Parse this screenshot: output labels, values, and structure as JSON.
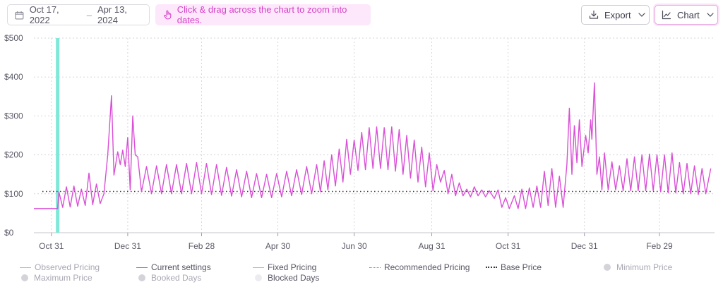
{
  "toolbar": {
    "date_start": "Oct 17, 2022",
    "date_sep": "–",
    "date_end": "Apr 13, 2024",
    "hint": "Click & drag across the chart to zoom into dates.",
    "export_label": "Export",
    "chart_label": "Chart"
  },
  "legend": {
    "observed": "Observed Pricing",
    "current": "Current settings",
    "fixed": "Fixed Pricing",
    "recommended": "Recommended Pricing",
    "base": "Base Price",
    "minimum": "Minimum Price",
    "maximum": "Maximum Price",
    "booked": "Booked Days",
    "blocked": "Blocked Days"
  },
  "colors": {
    "current": "#d94fd6",
    "base": "#3a3a46",
    "highlight": "#7fe8d8",
    "fixed": "#f0b53c",
    "grid": "#d6d6dd"
  },
  "chart_data": {
    "type": "line",
    "x_range": [
      "2022-10-17",
      "2024-04-13"
    ],
    "x_ticks": [
      {
        "date": "2022-10-31",
        "label": "Oct 31"
      },
      {
        "date": "2022-12-31",
        "label": "Dec 31"
      },
      {
        "date": "2023-02-28",
        "label": "Feb 28"
      },
      {
        "date": "2023-04-30",
        "label": "Apr 30"
      },
      {
        "date": "2023-06-30",
        "label": "Jun 30"
      },
      {
        "date": "2023-08-31",
        "label": "Aug 31"
      },
      {
        "date": "2023-10-31",
        "label": "Oct 31"
      },
      {
        "date": "2023-12-31",
        "label": "Dec 31"
      },
      {
        "date": "2024-02-29",
        "label": "Feb 29"
      }
    ],
    "y_ticks": [
      {
        "value": 0,
        "label": "$0"
      },
      {
        "value": 100,
        "label": "$100"
      },
      {
        "value": 200,
        "label": "$200"
      },
      {
        "value": 300,
        "label": "$300"
      },
      {
        "value": 400,
        "label": "$400"
      },
      {
        "value": 500,
        "label": "$500"
      }
    ],
    "ylim": [
      0,
      500
    ],
    "grid": true,
    "highlight_date": "2022-11-05",
    "base_price": 106,
    "series": [
      {
        "name": "Current settings",
        "points": [
          [
            "2022-10-17",
            62
          ],
          [
            "2022-10-31",
            62
          ],
          [
            "2022-11-05",
            62
          ],
          [
            "2022-11-06",
            105
          ],
          [
            "2022-11-09",
            65
          ],
          [
            "2022-11-12",
            118
          ],
          [
            "2022-11-15",
            66
          ],
          [
            "2022-11-18",
            120
          ],
          [
            "2022-11-21",
            68
          ],
          [
            "2022-11-24",
            112
          ],
          [
            "2022-11-27",
            70
          ],
          [
            "2022-11-30",
            153
          ],
          [
            "2022-12-03",
            72
          ],
          [
            "2022-12-06",
            125
          ],
          [
            "2022-12-09",
            75
          ],
          [
            "2022-12-12",
            100
          ],
          [
            "2022-12-15",
            200
          ],
          [
            "2022-12-18",
            352
          ],
          [
            "2022-12-20",
            148
          ],
          [
            "2022-12-23",
            208
          ],
          [
            "2022-12-25",
            175
          ],
          [
            "2022-12-27",
            212
          ],
          [
            "2022-12-29",
            170
          ],
          [
            "2022-12-31",
            245
          ],
          [
            "2023-01-02",
            110
          ],
          [
            "2023-01-04",
            300
          ],
          [
            "2023-01-06",
            200
          ],
          [
            "2023-01-08",
            195
          ],
          [
            "2023-01-11",
            105
          ],
          [
            "2023-01-15",
            170
          ],
          [
            "2023-01-19",
            100
          ],
          [
            "2023-01-23",
            172
          ],
          [
            "2023-01-27",
            100
          ],
          [
            "2023-01-31",
            175
          ],
          [
            "2023-02-04",
            100
          ],
          [
            "2023-02-08",
            175
          ],
          [
            "2023-02-12",
            100
          ],
          [
            "2023-02-16",
            178
          ],
          [
            "2023-02-20",
            100
          ],
          [
            "2023-02-24",
            180
          ],
          [
            "2023-02-28",
            100
          ],
          [
            "2023-03-04",
            178
          ],
          [
            "2023-03-08",
            98
          ],
          [
            "2023-03-12",
            175
          ],
          [
            "2023-03-16",
            96
          ],
          [
            "2023-03-20",
            168
          ],
          [
            "2023-03-24",
            94
          ],
          [
            "2023-03-28",
            162
          ],
          [
            "2023-04-01",
            92
          ],
          [
            "2023-04-05",
            158
          ],
          [
            "2023-04-09",
            90
          ],
          [
            "2023-04-13",
            152
          ],
          [
            "2023-04-17",
            90
          ],
          [
            "2023-04-21",
            150
          ],
          [
            "2023-04-25",
            90
          ],
          [
            "2023-04-29",
            152
          ],
          [
            "2023-05-03",
            92
          ],
          [
            "2023-05-07",
            158
          ],
          [
            "2023-05-11",
            95
          ],
          [
            "2023-05-15",
            162
          ],
          [
            "2023-05-19",
            98
          ],
          [
            "2023-05-23",
            170
          ],
          [
            "2023-05-27",
            100
          ],
          [
            "2023-05-31",
            175
          ],
          [
            "2023-06-03",
            105
          ],
          [
            "2023-06-06",
            185
          ],
          [
            "2023-06-09",
            110
          ],
          [
            "2023-06-12",
            200
          ],
          [
            "2023-06-15",
            120
          ],
          [
            "2023-06-18",
            215
          ],
          [
            "2023-06-21",
            130
          ],
          [
            "2023-06-24",
            240
          ],
          [
            "2023-06-27",
            150
          ],
          [
            "2023-06-30",
            238
          ],
          [
            "2023-07-03",
            160
          ],
          [
            "2023-07-06",
            258
          ],
          [
            "2023-07-09",
            162
          ],
          [
            "2023-07-12",
            270
          ],
          [
            "2023-07-15",
            165
          ],
          [
            "2023-07-18",
            272
          ],
          [
            "2023-07-21",
            165
          ],
          [
            "2023-07-24",
            270
          ],
          [
            "2023-07-27",
            162
          ],
          [
            "2023-07-30",
            272
          ],
          [
            "2023-08-02",
            158
          ],
          [
            "2023-08-05",
            265
          ],
          [
            "2023-08-08",
            150
          ],
          [
            "2023-08-11",
            250
          ],
          [
            "2023-08-14",
            140
          ],
          [
            "2023-08-17",
            238
          ],
          [
            "2023-08-20",
            130
          ],
          [
            "2023-08-23",
            220
          ],
          [
            "2023-08-26",
            118
          ],
          [
            "2023-08-29",
            205
          ],
          [
            "2023-09-01",
            108
          ],
          [
            "2023-09-04",
            175
          ],
          [
            "2023-09-07",
            130
          ],
          [
            "2023-09-10",
            160
          ],
          [
            "2023-09-13",
            100
          ],
          [
            "2023-09-16",
            150
          ],
          [
            "2023-09-19",
            95
          ],
          [
            "2023-09-22",
            128
          ],
          [
            "2023-09-25",
            95
          ],
          [
            "2023-09-28",
            112
          ],
          [
            "2023-10-01",
            92
          ],
          [
            "2023-10-04",
            118
          ],
          [
            "2023-10-07",
            95
          ],
          [
            "2023-10-10",
            110
          ],
          [
            "2023-10-13",
            92
          ],
          [
            "2023-10-16",
            108
          ],
          [
            "2023-10-20",
            88
          ],
          [
            "2023-10-23",
            110
          ],
          [
            "2023-10-26",
            65
          ],
          [
            "2023-10-29",
            90
          ],
          [
            "2023-11-01",
            62
          ],
          [
            "2023-11-05",
            95
          ],
          [
            "2023-11-08",
            62
          ],
          [
            "2023-11-11",
            112
          ],
          [
            "2023-11-14",
            62
          ],
          [
            "2023-11-17",
            115
          ],
          [
            "2023-11-20",
            65
          ],
          [
            "2023-11-23",
            120
          ],
          [
            "2023-11-26",
            65
          ],
          [
            "2023-11-29",
            158
          ],
          [
            "2023-12-02",
            70
          ],
          [
            "2023-12-05",
            165
          ],
          [
            "2023-12-08",
            65
          ],
          [
            "2023-12-11",
            145
          ],
          [
            "2023-12-14",
            65
          ],
          [
            "2023-12-17",
            175
          ],
          [
            "2023-12-19",
            320
          ],
          [
            "2023-12-21",
            150
          ],
          [
            "2023-12-23",
            275
          ],
          [
            "2023-12-25",
            180
          ],
          [
            "2023-12-27",
            290
          ],
          [
            "2023-12-29",
            170
          ],
          [
            "2024-01-01",
            250
          ],
          [
            "2024-01-03",
            205
          ],
          [
            "2024-01-05",
            290
          ],
          [
            "2024-01-06",
            240
          ],
          [
            "2024-01-08",
            385
          ],
          [
            "2024-01-10",
            150
          ],
          [
            "2024-01-12",
            195
          ],
          [
            "2024-01-14",
            110
          ],
          [
            "2024-01-16",
            205
          ],
          [
            "2024-01-19",
            110
          ],
          [
            "2024-01-22",
            182
          ],
          [
            "2024-01-25",
            110
          ],
          [
            "2024-01-28",
            172
          ],
          [
            "2024-01-31",
            108
          ],
          [
            "2024-02-03",
            190
          ],
          [
            "2024-02-06",
            108
          ],
          [
            "2024-02-09",
            195
          ],
          [
            "2024-02-12",
            108
          ],
          [
            "2024-02-15",
            200
          ],
          [
            "2024-02-18",
            108
          ],
          [
            "2024-02-21",
            202
          ],
          [
            "2024-02-24",
            108
          ],
          [
            "2024-02-27",
            200
          ],
          [
            "2024-03-01",
            105
          ],
          [
            "2024-03-04",
            200
          ],
          [
            "2024-03-07",
            102
          ],
          [
            "2024-03-10",
            205
          ],
          [
            "2024-03-13",
            102
          ],
          [
            "2024-03-16",
            180
          ],
          [
            "2024-03-19",
            100
          ],
          [
            "2024-03-22",
            178
          ],
          [
            "2024-03-25",
            100
          ],
          [
            "2024-03-28",
            172
          ],
          [
            "2024-03-31",
            98
          ],
          [
            "2024-04-03",
            165
          ],
          [
            "2024-04-06",
            100
          ],
          [
            "2024-04-10",
            165
          ]
        ]
      }
    ]
  }
}
